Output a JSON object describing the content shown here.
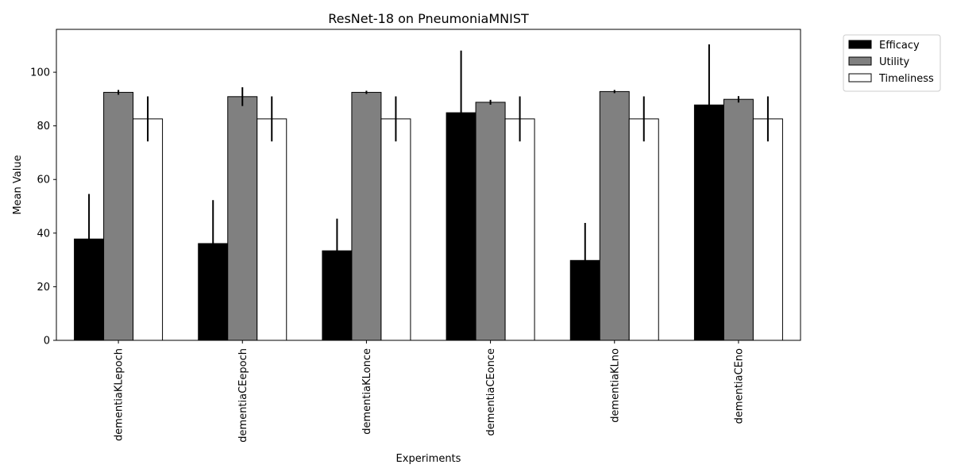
{
  "chart_data": {
    "type": "bar",
    "title": "ResNet-18 on PneumoniaMNIST",
    "xlabel": "Experiments",
    "ylabel": "Mean Value",
    "ylim": [
      0,
      116
    ],
    "yticks": [
      0,
      20,
      40,
      60,
      80,
      100
    ],
    "grid": false,
    "legend_position": "outside-top-right",
    "categories": [
      "dementiaKLepoch",
      "dementiaCEepoch",
      "dementiaKLonce",
      "dementiaCEonce",
      "dementiaKLno",
      "dementiaCEno"
    ],
    "series": [
      {
        "name": "Efficacy",
        "color": "#000000",
        "values": [
          37.8,
          36.1,
          33.4,
          84.9,
          29.8,
          87.8
        ],
        "errors": [
          16.8,
          16.2,
          12.0,
          23.2,
          14.0,
          22.6
        ]
      },
      {
        "name": "Utility",
        "color": "#808080",
        "values": [
          92.5,
          90.9,
          92.5,
          88.8,
          92.8,
          89.9
        ],
        "errors": [
          0.9,
          3.5,
          0.6,
          0.9,
          0.6,
          1.2
        ]
      },
      {
        "name": "Timeliness",
        "color": "#ffffff",
        "values": [
          82.6,
          82.6,
          82.6,
          82.6,
          82.6,
          82.6
        ],
        "errors": [
          8.4,
          8.4,
          8.4,
          8.4,
          8.4,
          8.4
        ]
      }
    ]
  }
}
